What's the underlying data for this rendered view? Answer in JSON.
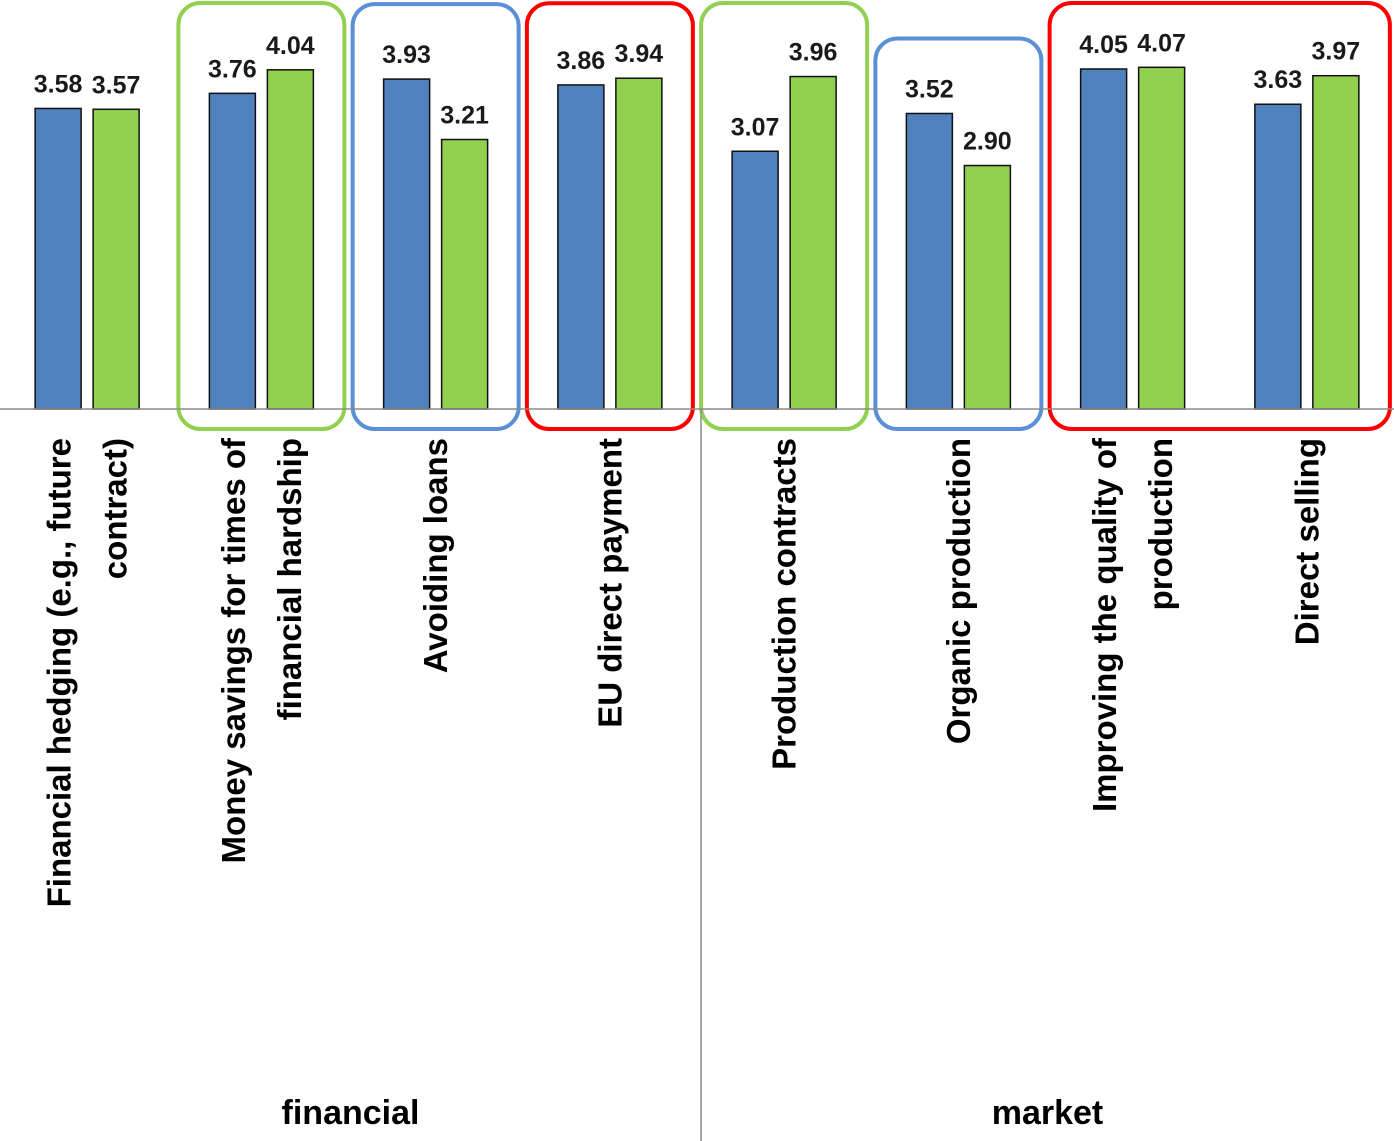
{
  "chart_data": {
    "type": "bar",
    "categories": [
      [
        "Financial hedging (e.g., future",
        "contract)"
      ],
      [
        "Money savings for times of",
        "financial hardship"
      ],
      [
        "Avoiding loans"
      ],
      [
        "EU direct payment"
      ],
      [
        "Production contracts"
      ],
      [
        "Organic production"
      ],
      [
        "Improving the quality of",
        "production"
      ],
      [
        "Direct selling"
      ]
    ],
    "series": [
      {
        "values": [
          3.58,
          3.76,
          3.93,
          3.86,
          3.07,
          3.52,
          4.05,
          3.63
        ],
        "color": "#4f81bd"
      },
      {
        "values": [
          3.57,
          4.04,
          3.21,
          3.94,
          3.96,
          2.9,
          4.07,
          3.97
        ],
        "color": "#92d050"
      }
    ],
    "value_labels": [
      [
        "3.58",
        "3.76",
        "3.93",
        "3.86",
        "3.07",
        "3.52",
        "4.05",
        "3.63"
      ],
      [
        "3.57",
        "4.04",
        "3.21",
        "3.94",
        "3.96",
        "2.90",
        "4.07",
        "3.97"
      ]
    ],
    "groups": [
      {
        "label": "financial",
        "categories": [
          0,
          1,
          2,
          3
        ]
      },
      {
        "label": "market",
        "categories": [
          4,
          5,
          6,
          7
        ]
      }
    ],
    "highlights": [
      {
        "categories": [
          1
        ],
        "color": "#92d050"
      },
      {
        "categories": [
          2
        ],
        "color": "#5b8fd6"
      },
      {
        "categories": [
          3
        ],
        "color": "#ff0000"
      },
      {
        "categories": [
          4
        ],
        "color": "#92d050"
      },
      {
        "categories": [
          5
        ],
        "color": "#5b8fd6"
      },
      {
        "categories": [
          6,
          7
        ],
        "color": "#ff0000"
      }
    ],
    "ylim": [
      0,
      4.3
    ],
    "grid": false,
    "legend": "none",
    "title": "",
    "xlabel": "",
    "ylabel": ""
  }
}
